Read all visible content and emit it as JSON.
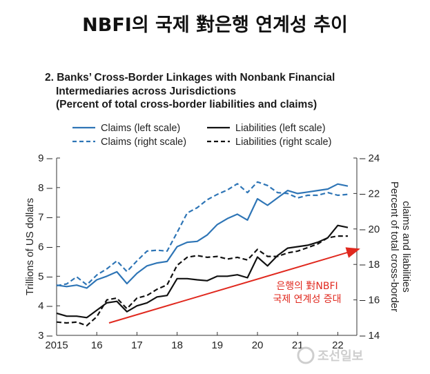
{
  "headline": "NBFI의 국제 對은행 연계성 추이",
  "chart_title": {
    "line1": "2. Banks’ Cross-Border Linkages with Nonbank Financial",
    "line2": "Intermediaries across Jurisdictions",
    "line3": "(Percent of total cross-border liabilities and claims)"
  },
  "annotation": {
    "line1": "은행의 對NBFI",
    "line2": "국제 연계성 증대"
  },
  "watermark": "조선일보",
  "colors": {
    "claims": "#2e75b6",
    "liabilities": "#111111",
    "arrow": "#e0281e"
  },
  "chart_data": {
    "type": "line",
    "x_ticks": [
      2015,
      2016,
      2017,
      2018,
      2019,
      2020,
      2021,
      2022
    ],
    "x_tick_labels": [
      "2015",
      "16",
      "17",
      "18",
      "19",
      "20",
      "21",
      "22"
    ],
    "ylabel_left": "Trillions of US dollars",
    "ylabel_right": "Percent of total cross-border claims and liabilities",
    "ylim_left": [
      3,
      9
    ],
    "ylim_right": [
      14,
      24
    ],
    "yticks_left": [
      3,
      4,
      5,
      6,
      7,
      8,
      9
    ],
    "yticks_right": [
      14,
      16,
      18,
      20,
      22,
      24
    ],
    "legend": [
      "Claims (left scale)",
      "Liabilities (left scale)",
      "Claims (right scale)",
      "Liabilities (right scale)"
    ],
    "series": [
      {
        "name": "Claims (left scale)",
        "axis": "left",
        "style": "solid",
        "color": "#2e75b6",
        "x": [
          2015.0,
          2015.25,
          2015.5,
          2015.75,
          2016.0,
          2016.25,
          2016.5,
          2016.75,
          2017.0,
          2017.25,
          2017.5,
          2017.75,
          2018.0,
          2018.25,
          2018.5,
          2018.75,
          2019.0,
          2019.25,
          2019.5,
          2019.75,
          2020.0,
          2020.25,
          2020.5,
          2020.75,
          2021.0,
          2021.25,
          2021.5,
          2021.75,
          2022.0,
          2022.25
        ],
        "values": [
          4.7,
          4.65,
          4.7,
          4.6,
          4.88,
          5.0,
          5.15,
          4.75,
          5.1,
          5.35,
          5.45,
          5.5,
          6.0,
          6.15,
          6.18,
          6.4,
          6.75,
          6.95,
          7.1,
          6.9,
          7.62,
          7.4,
          7.65,
          7.9,
          7.8,
          7.85,
          7.9,
          7.95,
          8.12,
          8.05
        ]
      },
      {
        "name": "Liabilities (left scale)",
        "axis": "left",
        "style": "solid",
        "color": "#111111",
        "x": [
          2015.0,
          2015.25,
          2015.5,
          2015.75,
          2016.0,
          2016.25,
          2016.5,
          2016.75,
          2017.0,
          2017.25,
          2017.5,
          2017.75,
          2018.0,
          2018.25,
          2018.5,
          2018.75,
          2019.0,
          2019.25,
          2019.5,
          2019.75,
          2020.0,
          2020.25,
          2020.5,
          2020.75,
          2021.0,
          2021.25,
          2021.5,
          2021.75,
          2022.0,
          2022.25
        ],
        "values": [
          3.75,
          3.65,
          3.65,
          3.6,
          3.85,
          4.1,
          4.15,
          3.8,
          4.0,
          4.1,
          4.3,
          4.35,
          4.92,
          4.92,
          4.88,
          4.85,
          5.0,
          5.0,
          5.05,
          4.95,
          5.65,
          5.35,
          5.7,
          5.95,
          6.0,
          6.05,
          6.15,
          6.3,
          6.72,
          6.65
        ]
      },
      {
        "name": "Claims (right scale)",
        "axis": "right",
        "style": "dashed",
        "color": "#2e75b6",
        "x": [
          2015.0,
          2015.25,
          2015.5,
          2015.75,
          2016.0,
          2016.25,
          2016.5,
          2016.75,
          2017.0,
          2017.25,
          2017.5,
          2017.75,
          2018.0,
          2018.25,
          2018.5,
          2018.75,
          2019.0,
          2019.25,
          2019.5,
          2019.75,
          2020.0,
          2020.25,
          2020.5,
          2020.75,
          2021.0,
          2021.25,
          2021.5,
          2021.75,
          2022.0,
          2022.25
        ],
        "values": [
          16.8,
          16.9,
          17.3,
          16.85,
          17.4,
          17.75,
          18.2,
          17.6,
          18.2,
          18.75,
          18.8,
          18.75,
          19.8,
          20.9,
          21.2,
          21.65,
          21.95,
          22.2,
          22.55,
          22.05,
          22.65,
          22.45,
          22.05,
          22.0,
          21.75,
          21.9,
          21.9,
          22.05,
          21.9,
          21.95
        ]
      },
      {
        "name": "Liabilities (right scale)",
        "axis": "right",
        "style": "dashed",
        "color": "#111111",
        "x": [
          2015.0,
          2015.25,
          2015.5,
          2015.75,
          2016.0,
          2016.25,
          2016.5,
          2016.75,
          2017.0,
          2017.25,
          2017.5,
          2017.75,
          2018.0,
          2018.25,
          2018.5,
          2018.75,
          2019.0,
          2019.25,
          2019.5,
          2019.75,
          2020.0,
          2020.25,
          2020.5,
          2020.75,
          2021.0,
          2021.25,
          2021.5,
          2021.75,
          2022.0,
          2022.25
        ],
        "values": [
          14.75,
          14.7,
          14.75,
          14.55,
          15.05,
          16.0,
          16.1,
          15.5,
          16.1,
          16.25,
          16.6,
          16.85,
          17.95,
          18.4,
          18.5,
          18.4,
          18.45,
          18.3,
          18.4,
          18.25,
          18.85,
          18.45,
          18.45,
          18.65,
          18.75,
          18.95,
          19.15,
          19.5,
          19.6,
          19.6
        ]
      }
    ]
  }
}
